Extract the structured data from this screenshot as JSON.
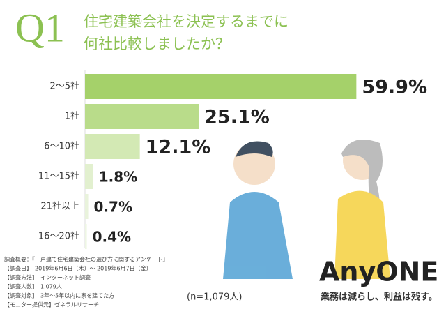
{
  "chart_data": {
    "type": "bar",
    "orientation": "horizontal",
    "question_label": "Q1",
    "title_lines": [
      "住宅建築会社を決定するまでに",
      "何社比較しましたか？"
    ],
    "categories": [
      "2〜5社",
      "1社",
      "6〜10社",
      "11〜15社",
      "21社以上",
      "16〜20社"
    ],
    "values": [
      59.9,
      25.1,
      12.1,
      1.8,
      0.7,
      0.4
    ],
    "value_labels": [
      "59.9%",
      "25.1%",
      "12.1%",
      "1.8%",
      "0.7%",
      "0.4%"
    ],
    "colors": [
      "#a5d16a",
      "#b9dc8a",
      "#d3e9b4",
      "#e2f0cf",
      "#e9f3dc",
      "#eef6e4"
    ],
    "survey_notes": [
      "調査概要：『一戸建て住宅建築会社の選び方に関するアンケート』",
      "【調査日】　2019年6月6日（木）〜 2019年6月7日（金）",
      "【調査方法】　インターネット調査",
      "【調査人数】　1,079人",
      "【調査対象】　3年〜5年以内に家を建てた方",
      "【モニター提供元】ゼネラルリサーチ"
    ],
    "sample_size": "(n=1,079人)",
    "brand": "AnyONE",
    "tagline": "業務は減らし、利益は残す。"
  }
}
